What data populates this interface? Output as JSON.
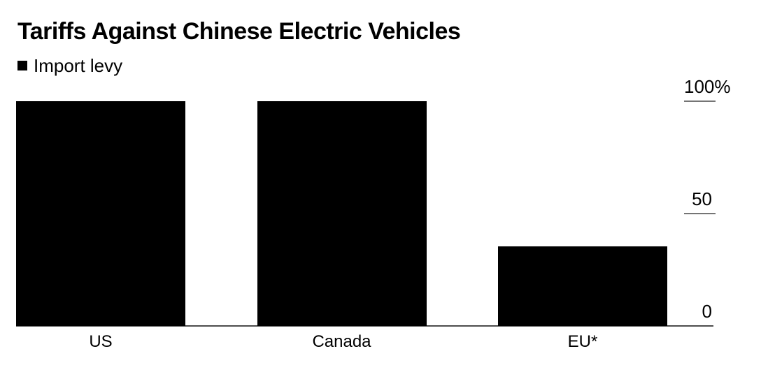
{
  "chart_data": {
    "type": "bar",
    "title": "Tariffs Against Chinese Electric Vehicles",
    "categories": [
      "US",
      "Canada",
      "EU*"
    ],
    "series": [
      {
        "name": "Import levy",
        "values": [
          100,
          100,
          35.3
        ]
      }
    ],
    "xlabel": "",
    "ylabel": "",
    "ylim": [
      0,
      100
    ],
    "yticks": [
      {
        "value": 100,
        "label": "100%"
      },
      {
        "value": 50,
        "label": "50"
      },
      {
        "value": 0,
        "label": "0"
      }
    ],
    "legend": {
      "label": "Import levy",
      "position": "top-left"
    },
    "grid": false,
    "axis_side": "right",
    "colors": {
      "bar": "#000000",
      "text": "#000000",
      "tick_line": "#757575",
      "baseline": "#4d4d4d",
      "background": "#ffffff"
    }
  }
}
